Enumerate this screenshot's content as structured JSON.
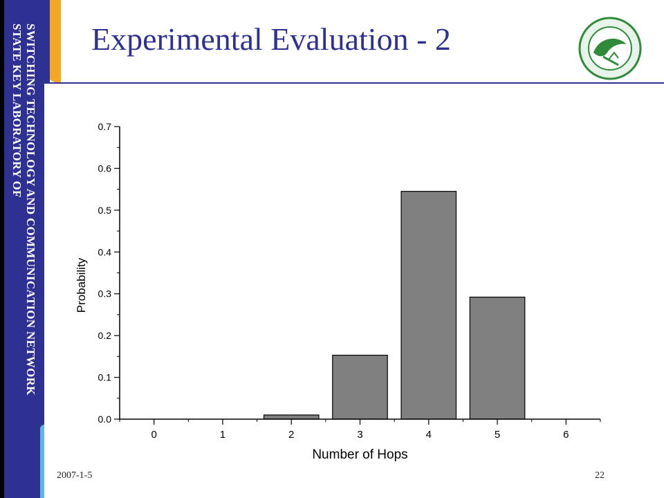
{
  "sidebar": {
    "line1": "SWITCHING TECHNOLOGY AND COMMUNICATION NETWORK",
    "line2": "STATE KEY LABORATORY OF"
  },
  "header": {
    "title": "Experimental Evaluation - 2"
  },
  "footer": {
    "date": "2007-1-5",
    "page": "22"
  },
  "colors": {
    "primary": "#2e3192",
    "accent": "#f5a623",
    "bar": "#808080"
  },
  "logo": {
    "icon": "university-seal-icon"
  },
  "chart_data": {
    "type": "bar",
    "categories": [
      "0",
      "1",
      "2",
      "3",
      "4",
      "5",
      "6"
    ],
    "x": [
      0,
      1,
      2,
      3,
      4,
      5,
      6
    ],
    "values": [
      0,
      0,
      0.01,
      0.153,
      0.545,
      0.292,
      0
    ],
    "title": "",
    "xlabel": "Number of Hops",
    "ylabel": "Probability",
    "ylim": [
      0,
      0.7
    ],
    "xlim": [
      -0.5,
      6.5
    ],
    "yticks": [
      "0.0",
      "0.1",
      "0.2",
      "0.3",
      "0.4",
      "0.5",
      "0.6",
      "0.7"
    ],
    "grid": false,
    "legend": "none"
  }
}
